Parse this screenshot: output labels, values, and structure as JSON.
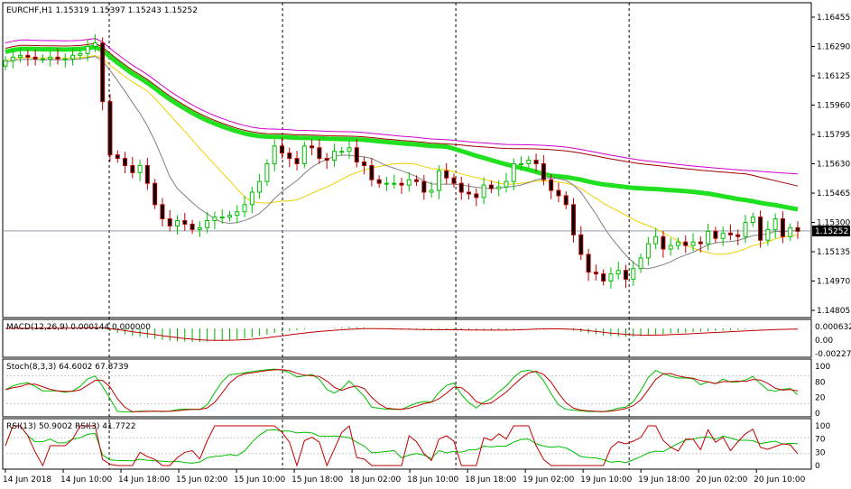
{
  "chart_data": {
    "type": "candlestick",
    "symbol_header": "EURCHF,H1  1.15319 1.15397 1.15243 1.15252",
    "price_axis": {
      "min": 1.14805,
      "max": 1.16455,
      "ticks": [
        "1.16455",
        "1.16290",
        "1.16125",
        "1.15960",
        "1.15795",
        "1.15630",
        "1.15465",
        "1.15300",
        "1.15135",
        "1.14970",
        "1.14805"
      ],
      "current_price": "1.15252",
      "current_value": 1.15252
    },
    "time_axis": {
      "ticks": [
        "14 Jun 2018",
        "14 Jun 10:00",
        "14 Jun 18:00",
        "15 Jun 02:00",
        "15 Jun 10:00",
        "15 Jun 18:00",
        "18 Jun 02:00",
        "18 Jun 10:00",
        "18 Jun 18:00",
        "19 Jun 02:00",
        "19 Jun 10:00",
        "19 Jun 18:00",
        "20 Jun 02:00",
        "20 Jun 10:00"
      ]
    },
    "separators_at_tick": [
      2,
      5,
      8,
      11
    ],
    "closes": [
      1.1621,
      1.1623,
      1.1624,
      1.1623,
      1.1622,
      1.1622,
      1.1623,
      1.1622,
      1.1622,
      1.1624,
      1.1625,
      1.1629,
      1.1631,
      1.1598,
      1.1568,
      1.1566,
      1.1562,
      1.1558,
      1.1562,
      1.1552,
      1.154,
      1.1532,
      1.1528,
      1.1531,
      1.1529,
      1.1526,
      1.1527,
      1.1531,
      1.1533,
      1.1533,
      1.1534,
      1.1536,
      1.154,
      1.1547,
      1.1553,
      1.1563,
      1.1573,
      1.1569,
      1.1566,
      1.1563,
      1.1573,
      1.1572,
      1.1566,
      1.1565,
      1.157,
      1.157,
      1.1572,
      1.1564,
      1.1562,
      1.1554,
      1.1552,
      1.1552,
      1.1552,
      1.1551,
      1.1554,
      1.1553,
      1.1547,
      1.1548,
      1.1559,
      1.1555,
      1.1552,
      1.1547,
      1.1546,
      1.1544,
      1.1551,
      1.1549,
      1.155,
      1.1553,
      1.1563,
      1.1563,
      1.1565,
      1.1563,
      1.1554,
      1.1548,
      1.1545,
      1.154,
      1.1523,
      1.1512,
      1.1502,
      1.1501,
      1.1497,
      1.1501,
      1.1503,
      1.1498,
      1.1504,
      1.151,
      1.1518,
      1.1522,
      1.1515,
      1.1517,
      1.1519,
      1.1517,
      1.1519,
      1.1518,
      1.1525,
      1.1521,
      1.1524,
      1.1523,
      1.1522,
      1.153,
      1.1533,
      1.152,
      1.1526,
      1.1532,
      1.1522,
      1.1527,
      1.1525
    ],
    "indicators": [
      {
        "label": "MACD(12,26,9) 0.000144 0.000000",
        "scale_labels": [
          "0.000632",
          "0.00",
          "-0.002275"
        ]
      },
      {
        "label": "Stoch(8,3,3) 64.6002 67.8739",
        "scale_labels": [
          "100",
          "80",
          "20",
          "0"
        ]
      },
      {
        "label": "RSI(13) 50.9002  RSI(3) 41.7722",
        "scale_labels": [
          "100",
          "70",
          "30",
          "0"
        ]
      }
    ],
    "colors": {
      "bull": "#00c000",
      "bear": "#c00000",
      "ma_fast": "#808080",
      "ma_mid": "#f0d000",
      "ma_slow": "#a00000",
      "ma_200": "#20e020",
      "ma_long": "#d000d0",
      "hist": "#00b000",
      "signal": "#c00000",
      "grid": "#c8c8c8",
      "price_line": "#8090a0"
    }
  }
}
